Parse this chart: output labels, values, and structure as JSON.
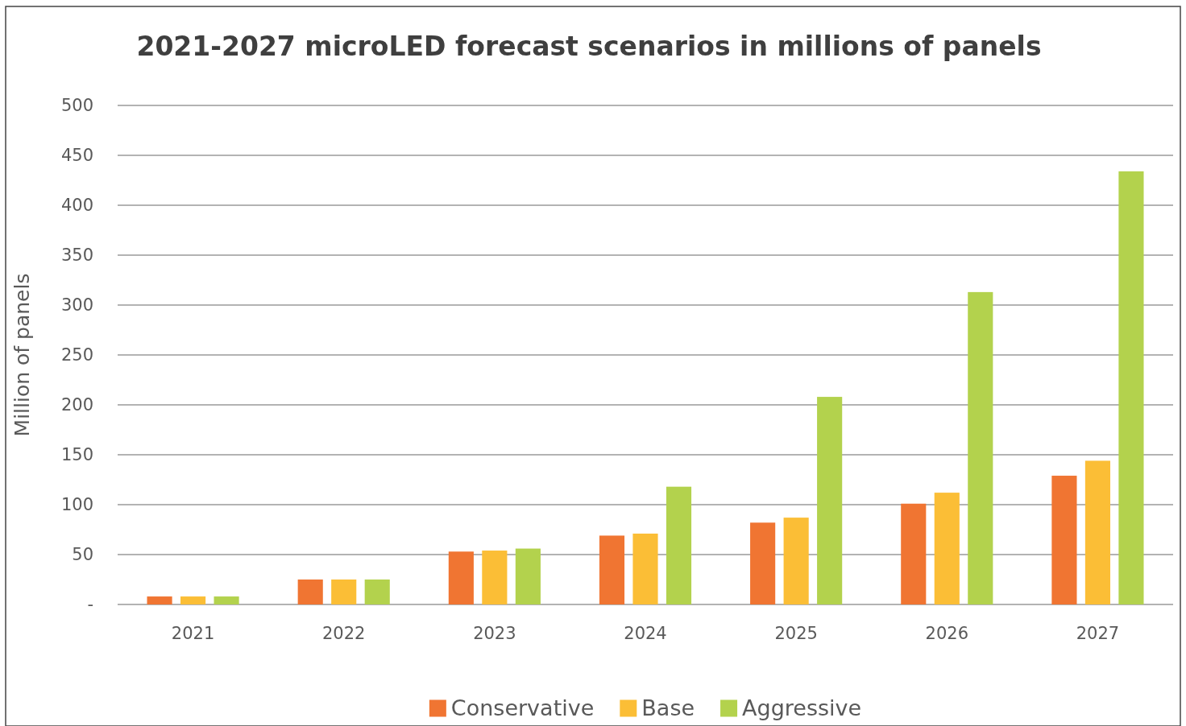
{
  "chart_data": {
    "type": "bar",
    "title": "2021-2027 microLED forecast scenarios in millions of panels",
    "ylabel": "Million of panels",
    "categories": [
      "2021",
      "2022",
      "2023",
      "2024",
      "2025",
      "2026",
      "2027"
    ],
    "series": [
      {
        "name": "Conservative",
        "color": "#f07532",
        "values": [
          8,
          25,
          53,
          69,
          82,
          101,
          129
        ]
      },
      {
        "name": "Base",
        "color": "#fbbe36",
        "values": [
          8,
          25,
          54,
          71,
          87,
          112,
          144
        ]
      },
      {
        "name": "Aggressive",
        "color": "#b3d24d",
        "values": [
          8,
          25,
          56,
          118,
          208,
          313,
          434
        ]
      }
    ],
    "ylim": [
      0,
      500
    ],
    "yticks": [
      {
        "value": 0,
        "label": "-"
      },
      50,
      100,
      150,
      200,
      250,
      300,
      350,
      400,
      450,
      500
    ],
    "grid": "y",
    "legend": "bottom"
  }
}
